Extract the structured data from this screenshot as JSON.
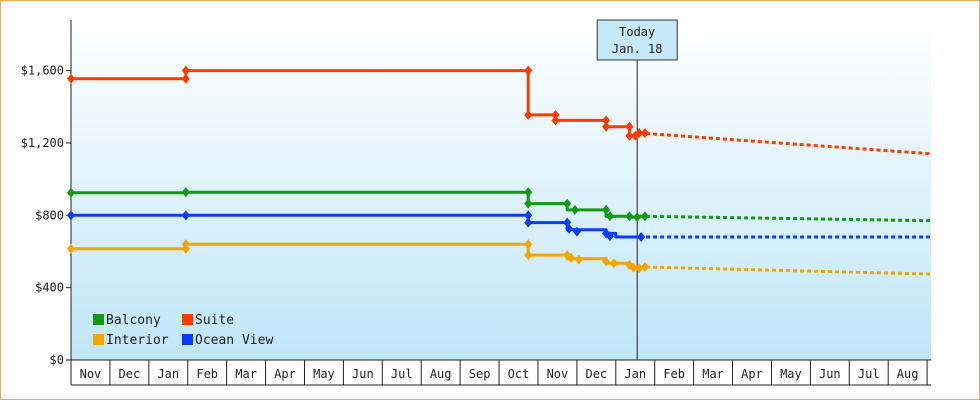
{
  "chart_data": {
    "type": "line",
    "title": "",
    "xlabel": "",
    "ylabel": "",
    "ylim": [
      0,
      1880
    ],
    "y_ticks": [
      {
        "value": 0,
        "label": "$0"
      },
      {
        "value": 400,
        "label": "$400"
      },
      {
        "value": 800,
        "label": "$800"
      },
      {
        "value": 1200,
        "label": "$1,200"
      },
      {
        "value": 1600,
        "label": "$1,600"
      }
    ],
    "x_range": [
      0,
      22.1
    ],
    "x_tick_labels": [
      "Nov",
      "Dec",
      "Jan",
      "Feb",
      "Mar",
      "Apr",
      "May",
      "Jun",
      "Jul",
      "Aug",
      "Sep",
      "Oct",
      "Nov",
      "Dec",
      "Jan",
      "Feb",
      "Mar",
      "Apr",
      "May",
      "Jun",
      "Jul",
      "Aug"
    ],
    "today_marker": {
      "line1": "Today",
      "line2": "Jan. 18",
      "x": 14.55
    },
    "legend": {
      "placement": "bottom-left",
      "items": [
        {
          "name": "Balcony",
          "color": "#129a12"
        },
        {
          "name": "Suite",
          "color": "#ff3c00"
        },
        {
          "name": "Interior",
          "color": "#f5a500"
        },
        {
          "name": "Ocean View",
          "color": "#0c3cf5"
        }
      ]
    },
    "background_gradient": [
      "#ffffff",
      "#bfe6f7"
    ],
    "series": [
      {
        "name": "Suite",
        "color": "#ff3c00",
        "history": [
          [
            0,
            1555
          ],
          [
            2.95,
            1555
          ],
          [
            2.95,
            1600
          ],
          [
            11.75,
            1600
          ],
          [
            11.75,
            1355
          ],
          [
            12.45,
            1355
          ],
          [
            12.45,
            1325
          ],
          [
            13.75,
            1325
          ],
          [
            13.75,
            1290
          ],
          [
            14.35,
            1290
          ],
          [
            14.35,
            1240
          ],
          [
            14.6,
            1240
          ],
          [
            14.6,
            1255
          ]
        ],
        "markers": [
          [
            0,
            1555
          ],
          [
            2.95,
            1555
          ],
          [
            2.95,
            1600
          ],
          [
            11.75,
            1600
          ],
          [
            11.75,
            1355
          ],
          [
            12.45,
            1355
          ],
          [
            12.45,
            1325
          ],
          [
            13.75,
            1325
          ],
          [
            13.75,
            1290
          ],
          [
            14.35,
            1290
          ],
          [
            14.35,
            1240
          ],
          [
            14.5,
            1240
          ],
          [
            14.6,
            1255
          ],
          [
            14.75,
            1255
          ]
        ],
        "forecast": [
          [
            14.6,
            1255
          ],
          [
            22.1,
            1140
          ]
        ]
      },
      {
        "name": "Balcony",
        "color": "#129a12",
        "history": [
          [
            0,
            925
          ],
          [
            2.95,
            925
          ],
          [
            2.95,
            928
          ],
          [
            11.75,
            928
          ],
          [
            11.75,
            865
          ],
          [
            12.75,
            865
          ],
          [
            12.75,
            830
          ],
          [
            13.75,
            830
          ],
          [
            13.75,
            795
          ],
          [
            14.35,
            795
          ],
          [
            14.35,
            790
          ],
          [
            14.6,
            790
          ],
          [
            14.6,
            795
          ]
        ],
        "markers": [
          [
            0,
            925
          ],
          [
            2.95,
            928
          ],
          [
            11.75,
            928
          ],
          [
            11.75,
            865
          ],
          [
            12.75,
            865
          ],
          [
            12.95,
            830
          ],
          [
            13.75,
            830
          ],
          [
            13.85,
            795
          ],
          [
            14.35,
            795
          ],
          [
            14.55,
            790
          ],
          [
            14.75,
            795
          ]
        ],
        "forecast": [
          [
            14.6,
            795
          ],
          [
            22.1,
            770
          ]
        ]
      },
      {
        "name": "Ocean View",
        "color": "#0c3cf5",
        "history": [
          [
            0,
            800
          ],
          [
            11.75,
            800
          ],
          [
            11.75,
            760
          ],
          [
            12.75,
            760
          ],
          [
            12.75,
            720
          ],
          [
            13.75,
            720
          ],
          [
            13.75,
            700
          ],
          [
            14.0,
            700
          ],
          [
            14.0,
            680
          ],
          [
            14.6,
            680
          ]
        ],
        "markers": [
          [
            0,
            800
          ],
          [
            2.95,
            800
          ],
          [
            11.75,
            800
          ],
          [
            11.75,
            760
          ],
          [
            12.75,
            760
          ],
          [
            12.8,
            725
          ],
          [
            13.0,
            710
          ],
          [
            13.75,
            700
          ],
          [
            13.85,
            685
          ],
          [
            14.65,
            680
          ]
        ],
        "forecast": [
          [
            14.6,
            680
          ],
          [
            22.1,
            680
          ]
        ]
      },
      {
        "name": "Interior",
        "color": "#f5a500",
        "history": [
          [
            0,
            615
          ],
          [
            2.95,
            615
          ],
          [
            2.95,
            640
          ],
          [
            11.75,
            640
          ],
          [
            11.75,
            580
          ],
          [
            12.75,
            580
          ],
          [
            12.75,
            560
          ],
          [
            13.75,
            560
          ],
          [
            13.75,
            535
          ],
          [
            14.35,
            535
          ],
          [
            14.35,
            510
          ],
          [
            14.6,
            510
          ],
          [
            14.6,
            515
          ]
        ],
        "markers": [
          [
            0,
            615
          ],
          [
            2.95,
            615
          ],
          [
            2.95,
            640
          ],
          [
            11.75,
            640
          ],
          [
            11.75,
            580
          ],
          [
            12.75,
            580
          ],
          [
            12.85,
            565
          ],
          [
            13.05,
            555
          ],
          [
            13.75,
            545
          ],
          [
            13.95,
            535
          ],
          [
            14.35,
            525
          ],
          [
            14.45,
            510
          ],
          [
            14.6,
            508
          ],
          [
            14.75,
            515
          ]
        ],
        "forecast": [
          [
            14.6,
            515
          ],
          [
            22.1,
            475
          ]
        ]
      }
    ]
  }
}
